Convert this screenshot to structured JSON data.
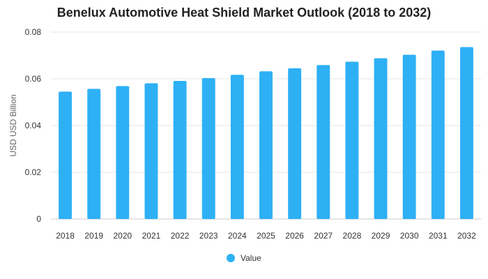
{
  "chart_data": {
    "type": "bar",
    "title": "Benelux Automotive Heat Shield Market Outlook (2018 to 2032)",
    "xlabel": "",
    "ylabel": "USD USD Billion",
    "categories": [
      "2018",
      "2019",
      "2020",
      "2021",
      "2022",
      "2023",
      "2024",
      "2025",
      "2026",
      "2027",
      "2028",
      "2029",
      "2030",
      "2031",
      "2032"
    ],
    "series": [
      {
        "name": "Value",
        "color": "#2eb0f5",
        "values": [
          0.0545,
          0.0557,
          0.0569,
          0.0581,
          0.0591,
          0.0603,
          0.0617,
          0.0632,
          0.0645,
          0.0659,
          0.0673,
          0.0688,
          0.0703,
          0.0721,
          0.0736
        ]
      }
    ],
    "ylim": [
      0,
      0.08
    ],
    "yticks": [
      "0",
      "0.02",
      "0.04",
      "0.06",
      "0.08"
    ],
    "grid": true,
    "legend_position": "bottom-center"
  }
}
